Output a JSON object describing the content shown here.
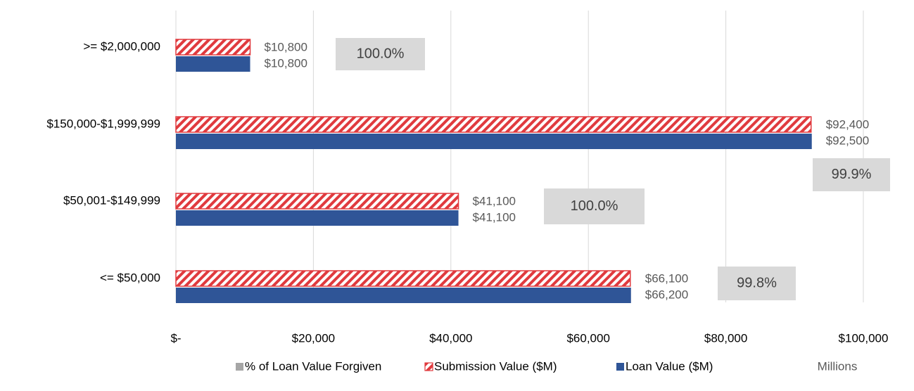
{
  "chart_data": {
    "type": "bar",
    "orientation": "horizontal",
    "categories": [
      ">= $2,000,000",
      "$150,000-$1,999,999",
      "$50,001-$149,999",
      "<= $50,000"
    ],
    "series": [
      {
        "name": "% of Loan Value Forgiven",
        "color": "#a6a6a6",
        "display": "label-box",
        "values": [
          100.0,
          99.9,
          100.0,
          99.8
        ],
        "value_labels": [
          "100.0%",
          "99.9%",
          "100.0%",
          "99.8%"
        ]
      },
      {
        "name": "Submission Value ($M)",
        "color": "#e03a3e",
        "pattern": "hatch",
        "values": [
          10800,
          92400,
          41100,
          66100
        ],
        "value_labels": [
          "$10,800",
          "$92,400",
          "$41,100",
          "$66,100"
        ]
      },
      {
        "name": "Loan Value ($M)",
        "color": "#2f5597",
        "values": [
          10800,
          92500,
          41100,
          66200
        ],
        "value_labels": [
          "$10,800",
          "$92,500",
          "$41,100",
          "$66,200"
        ]
      }
    ],
    "xlim": [
      0,
      100000
    ],
    "xticks": [
      {
        "value": 0,
        "label": "$-"
      },
      {
        "value": 20000,
        "label": "$20,000"
      },
      {
        "value": 40000,
        "label": "$40,000"
      },
      {
        "value": 60000,
        "label": "$60,000"
      },
      {
        "value": 80000,
        "label": "$80,000"
      },
      {
        "value": 100000,
        "label": "$100,000"
      }
    ],
    "x_unit_label": "Millions",
    "grid": true,
    "legend": "bottom"
  }
}
